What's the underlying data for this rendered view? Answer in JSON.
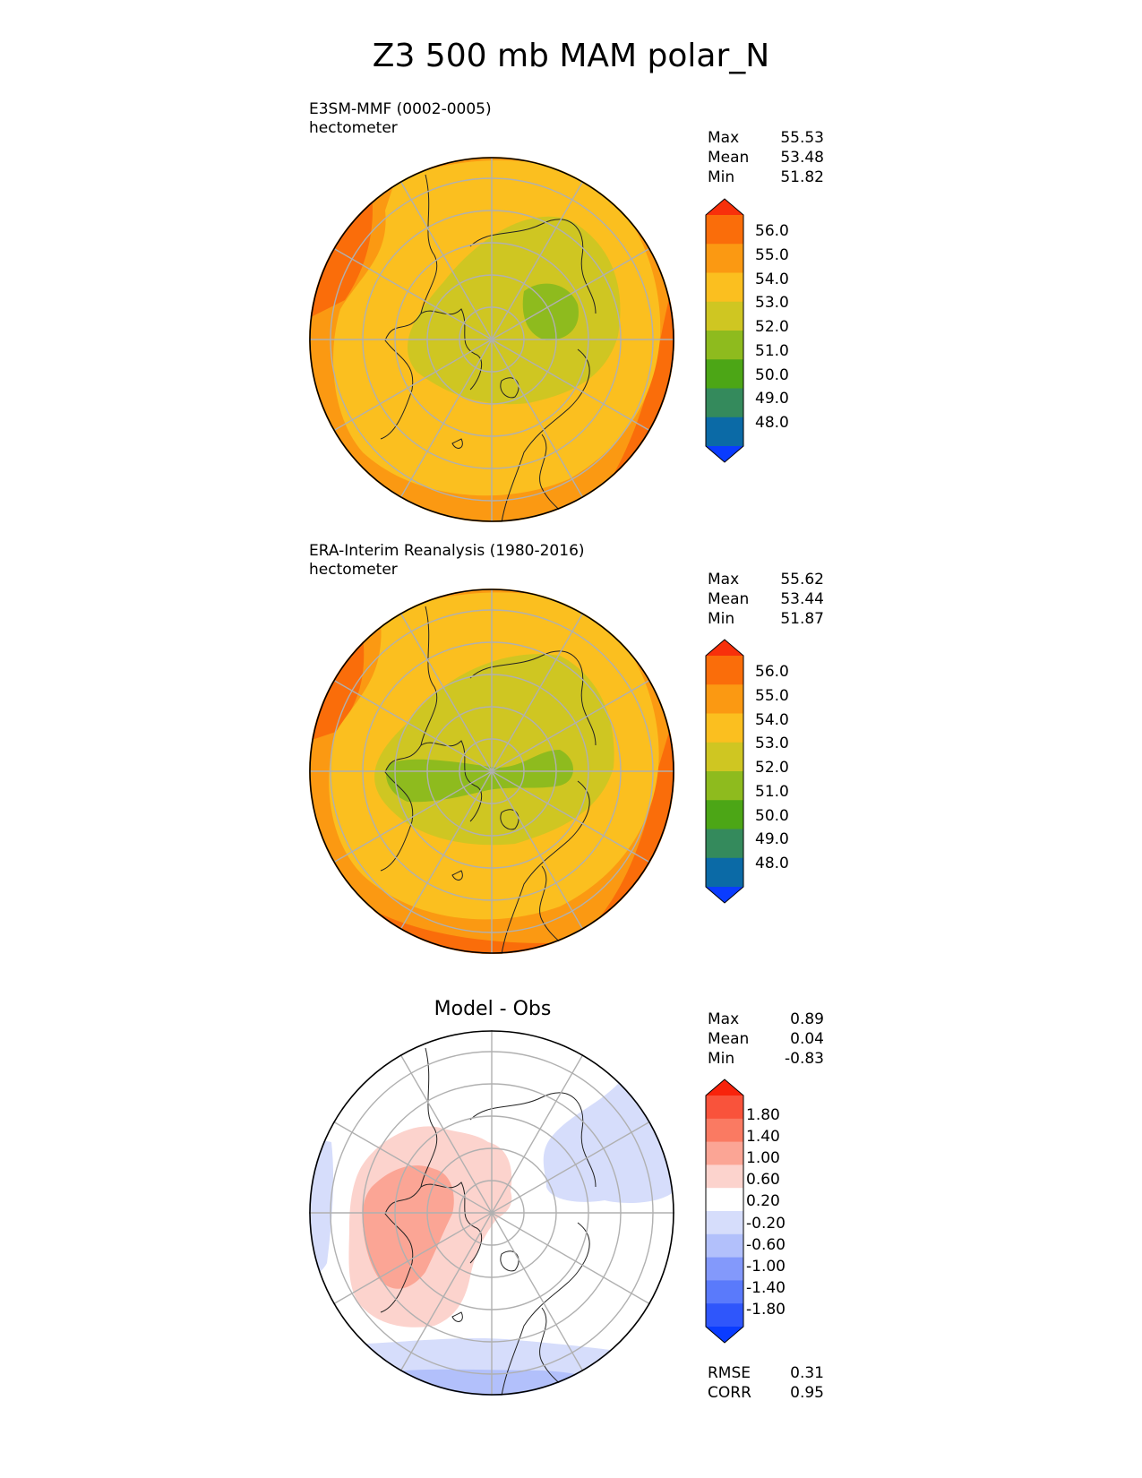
{
  "title": "Z3 500 mb MAM polar_N",
  "panels": [
    {
      "label": "E3SM-MMF (0002-0005)",
      "units": "hectometer",
      "stats": [
        {
          "name": "Max",
          "value": "55.53"
        },
        {
          "name": "Mean",
          "value": "53.48"
        },
        {
          "name": "Min",
          "value": "51.82"
        }
      ],
      "colorbar": {
        "ticks": [
          "56.0",
          "55.0",
          "54.0",
          "53.0",
          "52.0",
          "51.0",
          "50.0",
          "49.0",
          "48.0"
        ],
        "colors": [
          "#0a3cff",
          "#0b6aa6",
          "#348a5c",
          "#4ca616",
          "#8ebb1e",
          "#cfc622",
          "#fbbf1f",
          "#fb9912",
          "#fa6d0a",
          "#f8300b"
        ]
      }
    },
    {
      "label": "ERA-Interim Reanalysis (1980-2016)",
      "units": "hectometer",
      "stats": [
        {
          "name": "Max",
          "value": "55.62"
        },
        {
          "name": "Mean",
          "value": "53.44"
        },
        {
          "name": "Min",
          "value": "51.87"
        }
      ],
      "colorbar": {
        "ticks": [
          "56.0",
          "55.0",
          "54.0",
          "53.0",
          "52.0",
          "51.0",
          "50.0",
          "49.0",
          "48.0"
        ],
        "colors": [
          "#0a3cff",
          "#0b6aa6",
          "#348a5c",
          "#4ca616",
          "#8ebb1e",
          "#cfc622",
          "#fbbf1f",
          "#fb9912",
          "#fa6d0a",
          "#f8300b"
        ]
      }
    },
    {
      "label": "Model - Obs",
      "stats": [
        {
          "name": "Max",
          "value": "0.89"
        },
        {
          "name": "Mean",
          "value": "0.04"
        },
        {
          "name": "Min",
          "value": "-0.83"
        }
      ],
      "colorbar": {
        "ticks": [
          "1.80",
          "1.40",
          "1.00",
          "0.60",
          "0.20",
          "-0.20",
          "-0.60",
          "-1.00",
          "-1.40",
          "-1.80"
        ],
        "colors": [
          "#0a3cff",
          "#2f56fb",
          "#5a7afb",
          "#8399fb",
          "#b2c0fb",
          "#d6ddfb",
          "#ffffff",
          "#fcd3cd",
          "#fba595",
          "#fa7a62",
          "#f9533b",
          "#f8230b"
        ]
      },
      "rmse": {
        "name": "RMSE",
        "value": "0.31"
      },
      "corr": {
        "name": "CORR",
        "value": "0.95"
      }
    }
  ],
  "colors": {
    "z_bands": [
      "#fa6d0a",
      "#fb9912",
      "#fbbf1f",
      "#cfc622",
      "#8ebb1e"
    ],
    "diff_pos": [
      "#fcd3cd",
      "#fba595"
    ],
    "diff_neg": [
      "#d6ddfb",
      "#b2c0fb"
    ],
    "grid": "#b0b0b0",
    "coast": "#222222"
  }
}
